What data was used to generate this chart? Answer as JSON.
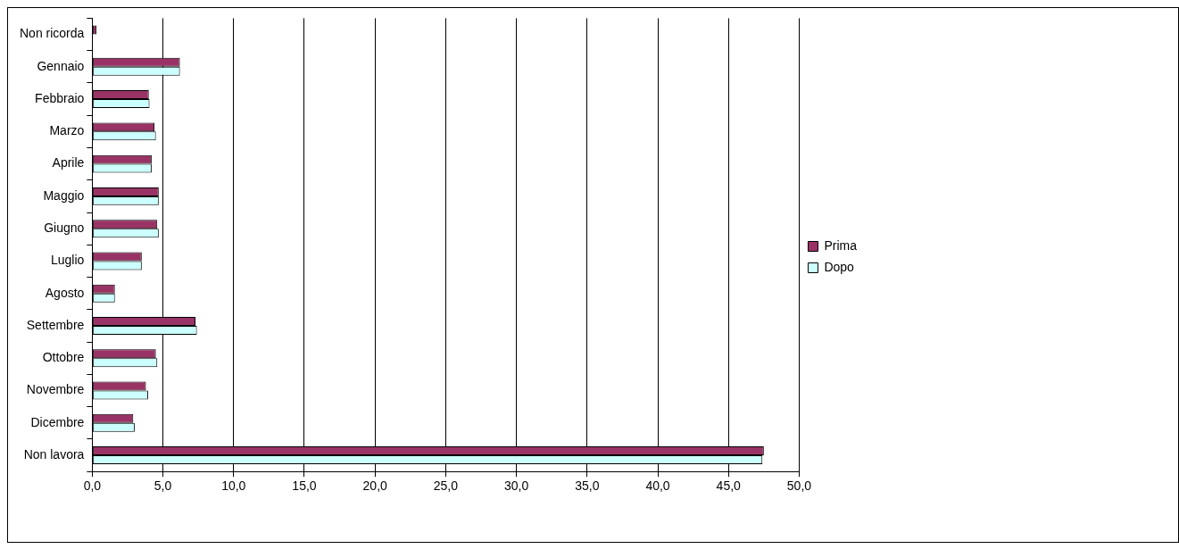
{
  "chart_data": {
    "type": "bar",
    "orientation": "horizontal",
    "categories": [
      "Non ricorda",
      "Gennaio",
      "Febbraio",
      "Marzo",
      "Aprile",
      "Maggio",
      "Giugno",
      "Luglio",
      "Agosto",
      "Settembre",
      "Ottobre",
      "Novembre",
      "Dicembre",
      "Non lavora"
    ],
    "series": [
      {
        "name": "Prima",
        "color": "#993366",
        "values": [
          0.3,
          6.2,
          4.0,
          4.4,
          4.2,
          4.7,
          4.6,
          3.5,
          1.6,
          7.3,
          4.5,
          3.8,
          2.9,
          47.5
        ]
      },
      {
        "name": "Dopo",
        "color": "#ccffff",
        "values": [
          0,
          6.2,
          4.05,
          4.5,
          4.2,
          4.7,
          4.7,
          3.5,
          1.6,
          7.4,
          4.6,
          3.95,
          3.0,
          47.4
        ]
      }
    ],
    "xlim": [
      0,
      50
    ],
    "xticks": [
      {
        "value": 0,
        "label": "0,0"
      },
      {
        "value": 5,
        "label": "5,0"
      },
      {
        "value": 10,
        "label": "10,0"
      },
      {
        "value": 15,
        "label": "15,0"
      },
      {
        "value": 20,
        "label": "20,0"
      },
      {
        "value": 25,
        "label": "25,0"
      },
      {
        "value": 30,
        "label": "30,0"
      },
      {
        "value": 35,
        "label": "35,0"
      },
      {
        "value": 40,
        "label": "40,0"
      },
      {
        "value": 45,
        "label": "45,0"
      },
      {
        "value": 50,
        "label": "50,0"
      }
    ],
    "grid": "x",
    "legend": "right"
  }
}
